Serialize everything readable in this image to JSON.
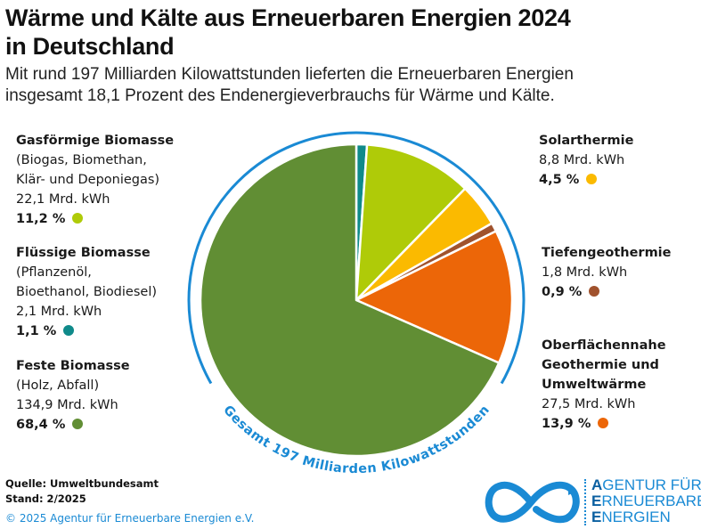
{
  "header": {
    "title_line1": "Wärme und Kälte aus Erneuerbaren Energien 2024",
    "title_line2": "in Deutschland",
    "subtitle_line1": "Mit rund 197 Milliarden Kilowattstunden lieferten die Erneuerbaren Energien",
    "subtitle_line2": "insgesamt 18,1 Prozent des Endenergieverbrauchs für Wärme und Kälte."
  },
  "chart_data": {
    "type": "pie",
    "title": "Wärme und Kälte aus Erneuerbaren Energien 2024 in Deutschland",
    "unit": "Mrd. kWh",
    "total_label": "Gesamt 197 Milliarden Kilowattstunden",
    "start_angle": "top",
    "direction": "clockwise",
    "slices": [
      {
        "key": "fluessig",
        "name": "Flüssige Biomasse",
        "detail": [
          "(Pflanzenöl,",
          "Bioethanol, Biodiesel)"
        ],
        "value": 2.1,
        "value_label": "2,1 Mrd. kWh",
        "percent": 1.1,
        "percent_label": "1,1 %",
        "color": "#0f8a8a"
      },
      {
        "key": "gas",
        "name": "Gasförmige Biomasse",
        "detail": [
          "(Biogas, Biomethan,",
          "Klär- und Deponiegas)"
        ],
        "value": 22.1,
        "value_label": "22,1 Mrd. kWh",
        "percent": 11.2,
        "percent_label": "11,2 %",
        "color": "#afcb08"
      },
      {
        "key": "solar",
        "name": "Solarthermie",
        "detail": [],
        "value": 8.8,
        "value_label": "8,8 Mrd. kWh",
        "percent": 4.5,
        "percent_label": "4,5 %",
        "color": "#fbba00"
      },
      {
        "key": "tiefen",
        "name": "Tiefengeothermie",
        "detail": [],
        "value": 1.8,
        "value_label": "1,8 Mrd. kWh",
        "percent": 0.9,
        "percent_label": "0,9 %",
        "color": "#a0522d"
      },
      {
        "key": "ober",
        "name": "Oberflächennahe Geothermie und Umweltwärme",
        "name_lines": [
          "Oberflächennahe",
          "Geothermie und",
          "Umweltwärme"
        ],
        "detail": [],
        "value": 27.5,
        "value_label": "27,5 Mrd. kWh",
        "percent": 13.9,
        "percent_label": "13,9 %",
        "color": "#ec6608"
      },
      {
        "key": "feste",
        "name": "Feste Biomasse",
        "detail": [
          "(Holz, Abfall)"
        ],
        "value": 134.9,
        "value_label": "134,9 Mrd. kWh",
        "percent": 68.4,
        "percent_label": "68,4 %",
        "color": "#618e34"
      }
    ],
    "ring_color": "#1a8ad4"
  },
  "labels": {
    "gas": {
      "name": "Gasförmige Biomasse",
      "detail1": "(Biogas, Biomethan,",
      "detail2": "Klär- und Deponiegas)",
      "value": "22,1 Mrd. kWh",
      "pct": "11,2 %"
    },
    "fluessig": {
      "name": "Flüssige Biomasse",
      "detail1": "(Pflanzenöl,",
      "detail2": "Bioethanol, Biodiesel)",
      "value": "2,1 Mrd. kWh",
      "pct": "1,1 %"
    },
    "feste": {
      "name": "Feste Biomasse",
      "detail1": "(Holz, Abfall)",
      "value": "134,9 Mrd. kWh",
      "pct": "68,4 %"
    },
    "solar": {
      "name": "Solarthermie",
      "value": "8,8 Mrd. kWh",
      "pct": "4,5 %"
    },
    "tiefen": {
      "name": "Tiefengeothermie",
      "value": "1,8 Mrd. kWh",
      "pct": "0,9 %"
    },
    "ober": {
      "name1": "Oberflächennahe",
      "name2": "Geothermie und",
      "name3": "Umweltwärme",
      "value": "27,5 Mrd. kWh",
      "pct": "13,9 %"
    }
  },
  "footer": {
    "source": "Quelle: Umweltbundesamt",
    "stand": "Stand: 2/2025",
    "copyright": "© 2025 Agentur für Erneuerbare Energien e.V."
  },
  "logo": {
    "line1_initial": "A",
    "line1_rest": "GENTUR FÜR",
    "line2_initial": "E",
    "line2_rest": "RNEUERBARE",
    "line3_initial": "E",
    "line3_rest": "NERGIEN"
  }
}
